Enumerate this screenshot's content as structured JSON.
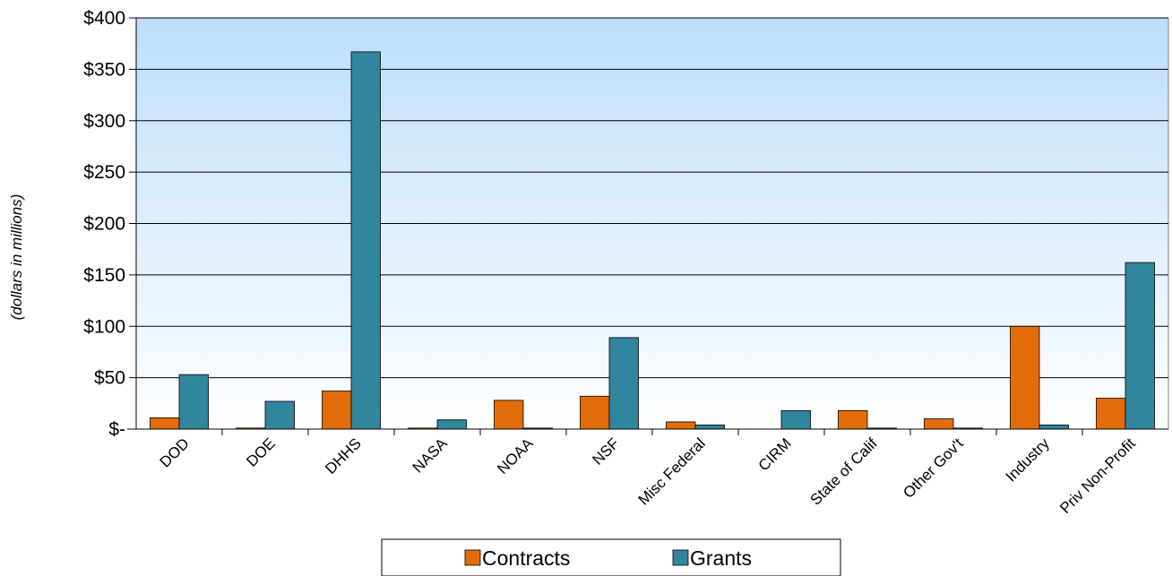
{
  "chart_data": {
    "type": "bar",
    "ylabel": "(dollars in millions)",
    "ylim": [
      0,
      400
    ],
    "yticks": [
      0,
      50,
      100,
      150,
      200,
      250,
      300,
      350,
      400
    ],
    "ytick_labels": [
      "$-",
      "$50",
      "$100",
      "$150",
      "$200",
      "$250",
      "$300",
      "$350",
      "$400"
    ],
    "categories": [
      "DOD",
      "DOE",
      "DHHS",
      "NASA",
      "NOAA",
      "NSF",
      "Misc Federal",
      "CIRM",
      "State of Calif",
      "Other Gov't",
      "Industry",
      "Priv Non-Profit"
    ],
    "series": [
      {
        "name": "Contracts",
        "color": "#E36C0A",
        "values": [
          11,
          1,
          37,
          1,
          28,
          32,
          7,
          0,
          18,
          10,
          100,
          30
        ]
      },
      {
        "name": "Grants",
        "color": "#31859C",
        "values": [
          53,
          27,
          367,
          9,
          1,
          89,
          4,
          18,
          1,
          1,
          4,
          162
        ]
      }
    ],
    "grid": true,
    "legend_position": "bottom",
    "background_gradient": [
      "#BCDEFB",
      "#FFFFFF"
    ]
  }
}
